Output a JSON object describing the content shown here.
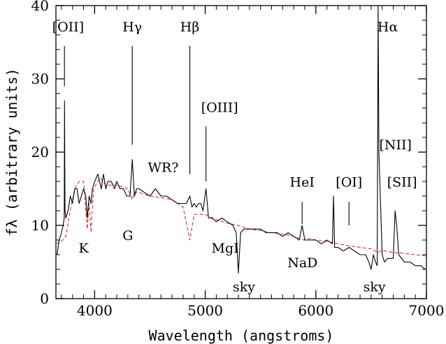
{
  "chart_data": {
    "type": "line",
    "xlabel": "Wavelength (angstroms)",
    "ylabel": "fλ (arbitrary units)",
    "xlim": [
      3650,
      7000
    ],
    "ylim": [
      0,
      40
    ],
    "x_ticks": [
      4000,
      5000,
      6000,
      7000
    ],
    "y_ticks": [
      0,
      10,
      20,
      30,
      40
    ],
    "grid": false,
    "series": [
      {
        "name": "",
        "color": "#000000",
        "style": "solid",
        "x": [
          3660,
          3680,
          3700,
          3715,
          3725,
          3728,
          3732,
          3740,
          3760,
          3780,
          3800,
          3820,
          3840,
          3860,
          3880,
          3900,
          3920,
          3933,
          3950,
          3968,
          3980,
          4000,
          4030,
          4060,
          4080,
          4101,
          4120,
          4150,
          4180,
          4200,
          4230,
          4260,
          4290,
          4320,
          4340,
          4360,
          4380,
          4400,
          4450,
          4500,
          4550,
          4600,
          4650,
          4700,
          4750,
          4800,
          4830,
          4861,
          4880,
          4900,
          4920,
          4940,
          4959,
          4980,
          5007,
          5030,
          5060,
          5100,
          5150,
          5200,
          5250,
          5280,
          5300,
          5320,
          5350,
          5400,
          5450,
          5500,
          5550,
          5600,
          5650,
          5700,
          5750,
          5800,
          5850,
          5876,
          5900,
          5950,
          6000,
          6050,
          6100,
          6150,
          6160,
          6170,
          6200,
          6250,
          6300,
          6350,
          6400,
          6450,
          6480,
          6500,
          6520,
          6540,
          6555,
          6563,
          6570,
          6583,
          6600,
          6620,
          6650,
          6700,
          6717,
          6731,
          6750,
          6800,
          6850,
          6900,
          6950,
          6990
        ],
        "y": [
          6,
          8,
          9,
          10,
          11,
          27,
          12,
          11,
          12,
          14,
          13,
          15,
          15,
          13,
          14,
          15,
          14,
          11,
          14,
          13,
          15,
          16,
          17,
          15,
          17,
          15,
          16,
          16,
          15,
          16,
          15,
          15,
          14,
          14,
          19,
          14,
          15,
          15,
          14.5,
          14,
          15,
          14,
          14,
          13.5,
          13,
          13,
          13,
          14,
          12.5,
          13,
          12.5,
          13,
          13,
          12,
          15,
          11,
          11,
          10.5,
          11,
          10.5,
          10,
          9,
          3.5,
          9,
          9.5,
          9.5,
          9.5,
          9.5,
          9,
          9,
          9,
          8.5,
          9,
          8.5,
          8,
          10,
          8,
          8,
          8,
          7.5,
          8,
          7.5,
          14,
          7,
          7,
          6.5,
          7,
          6.5,
          6,
          6,
          5,
          4,
          6,
          5,
          4.5,
          40,
          20,
          14,
          6,
          5,
          5.5,
          5.5,
          12,
          10,
          6,
          5,
          5,
          4.5,
          4.5,
          4
        ]
      },
      {
        "name": "",
        "color": "#d62020",
        "style": "dashed",
        "x": [
          3650,
          3700,
          3740,
          3780,
          3820,
          3860,
          3900,
          3933,
          3950,
          3968,
          3990,
          4050,
          4100,
          4200,
          4300,
          4340,
          4360,
          4400,
          4500,
          4600,
          4700,
          4800,
          4861,
          4900,
          5000,
          5100,
          5200,
          5300,
          5400,
          5500,
          5600,
          5700,
          5800,
          5893,
          5950,
          6000,
          6100,
          6200,
          6300,
          6400,
          6500,
          6563,
          6600,
          6700,
          6800,
          6900,
          7000
        ],
        "y": [
          7.5,
          7.8,
          8.5,
          12,
          15,
          16,
          16,
          9.5,
          13,
          9,
          15,
          16.5,
          15.5,
          15.5,
          15,
          13.5,
          14.5,
          14.5,
          14,
          13.8,
          13.5,
          12.5,
          8,
          11.5,
          11.5,
          10.8,
          10.3,
          10,
          9.5,
          9.3,
          9,
          8.8,
          8.5,
          8,
          8.2,
          8,
          7.8,
          7.5,
          7.2,
          7,
          6.8,
          6.3,
          6.6,
          6.3,
          6.2,
          6.0,
          5.8
        ]
      }
    ],
    "annotations": [
      {
        "text": "[OII]",
        "x": 3760,
        "y": 36.5,
        "marker_x": 3727,
        "marker_y": [
          29,
          34.5
        ]
      },
      {
        "text": "Hγ",
        "x": 4340,
        "y": 36.5,
        "marker_x": 4340,
        "marker_y": [
          21,
          34.5
        ]
      },
      {
        "text": "Hβ",
        "x": 4861,
        "y": 36.5,
        "marker_x": 4861,
        "marker_y": [
          17,
          34.5
        ]
      },
      {
        "text": "[OIII]",
        "x": 5130,
        "y": 25.5,
        "marker_x": 5007,
        "marker_y": [
          16,
          23.5
        ]
      },
      {
        "text": "WR?",
        "x": 4620,
        "y": 17.3,
        "marker_x": null,
        "marker_y": null
      },
      {
        "text": "HeI",
        "x": 5876,
        "y": 15.3,
        "marker_x": 5876,
        "marker_y": [
          10.2,
          13.2
        ]
      },
      {
        "text": "[OI]",
        "x": 6300,
        "y": 15.3,
        "marker_x": 6300,
        "marker_y": [
          10,
          13.2
        ]
      },
      {
        "text": "Hα",
        "x": 6650,
        "y": 36.5,
        "marker_x": null,
        "marker_y": null
      },
      {
        "text": "[NII]",
        "x": 6720,
        "y": 20.4,
        "marker_x": null,
        "marker_y": null
      },
      {
        "text": "[SII]",
        "x": 6780,
        "y": 15.3,
        "marker_x": null,
        "marker_y": null
      },
      {
        "text": "K",
        "x": 3900,
        "y": 6.3,
        "marker_x": null,
        "marker_y": null
      },
      {
        "text": "G",
        "x": 4300,
        "y": 8.0,
        "marker_x": null,
        "marker_y": null
      },
      {
        "text": "MgI",
        "x": 5180,
        "y": 6.3,
        "marker_x": null,
        "marker_y": null
      },
      {
        "text": "NaD",
        "x": 5880,
        "y": 4.3,
        "marker_x": null,
        "marker_y": null
      },
      {
        "text": "sky",
        "x": 5350,
        "y": 1.0,
        "marker_x": null,
        "marker_y": null
      },
      {
        "text": "sky",
        "x": 6530,
        "y": 1.0,
        "marker_x": null,
        "marker_y": null
      }
    ]
  }
}
